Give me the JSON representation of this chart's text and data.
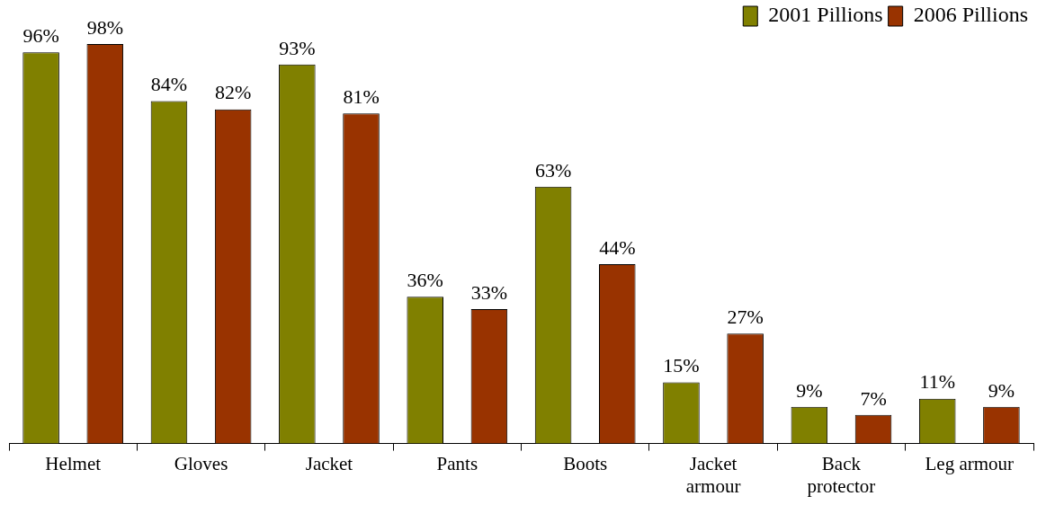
{
  "chart_data": {
    "type": "bar",
    "categories": [
      "Helmet",
      "Gloves",
      "Jacket",
      "Pants",
      "Boots",
      "Jacket armour",
      "Back protector",
      "Leg armour"
    ],
    "series": [
      {
        "name": "2001 Pillions",
        "color": "#808000",
        "values": [
          96,
          84,
          93,
          36,
          63,
          15,
          9,
          11
        ],
        "value_labels": [
          "96%",
          "84%",
          "93%",
          "36%",
          "63%",
          "15%",
          "9%",
          "11%"
        ]
      },
      {
        "name": "2006 Pillions",
        "color": "#993300",
        "values": [
          98,
          82,
          81,
          33,
          44,
          27,
          7,
          9
        ],
        "value_labels": [
          "98%",
          "82%",
          "81%",
          "33%",
          "44%",
          "27%",
          "7%",
          "9%"
        ]
      }
    ],
    "legend": "top right",
    "grid": false
  }
}
